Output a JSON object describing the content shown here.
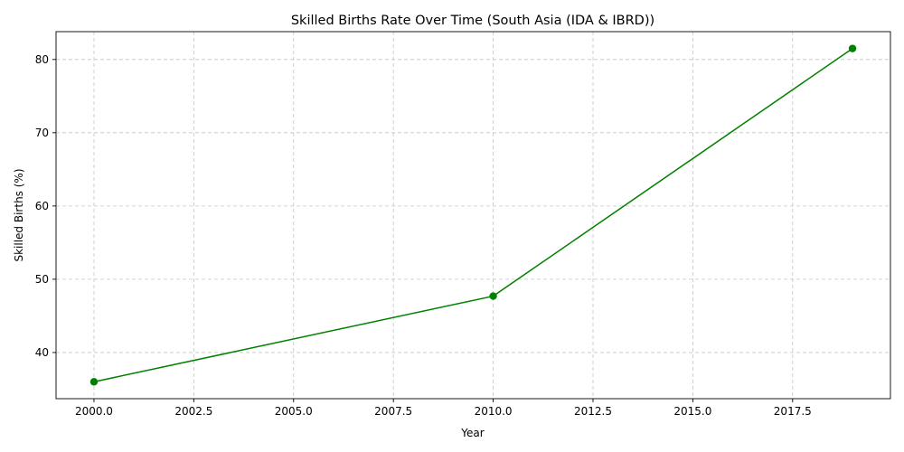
{
  "chart_data": {
    "type": "line",
    "title": "Skilled Births Rate Over Time (South Asia (IDA & IBRD))",
    "xlabel": "Year",
    "ylabel": "Skilled Births (%)",
    "xlim": [
      1999.05,
      2019.95
    ],
    "ylim": [
      33.7,
      83.8
    ],
    "xticks": [
      2000,
      2002.5,
      2005,
      2007.5,
      2010,
      2012.5,
      2015,
      2017.5
    ],
    "xtick_labels": [
      "2000.0",
      "2002.5",
      "2005.0",
      "2007.5",
      "2010.0",
      "2012.5",
      "2015.0",
      "2017.5"
    ],
    "yticks": [
      40,
      50,
      60,
      70,
      80
    ],
    "ytick_labels": [
      "40",
      "50",
      "60",
      "70",
      "80"
    ],
    "grid": true,
    "series": [
      {
        "color": "#008000",
        "marker": "circle",
        "x": [
          2000,
          2010,
          2019
        ],
        "y": [
          36.0,
          47.7,
          81.5
        ]
      }
    ]
  }
}
